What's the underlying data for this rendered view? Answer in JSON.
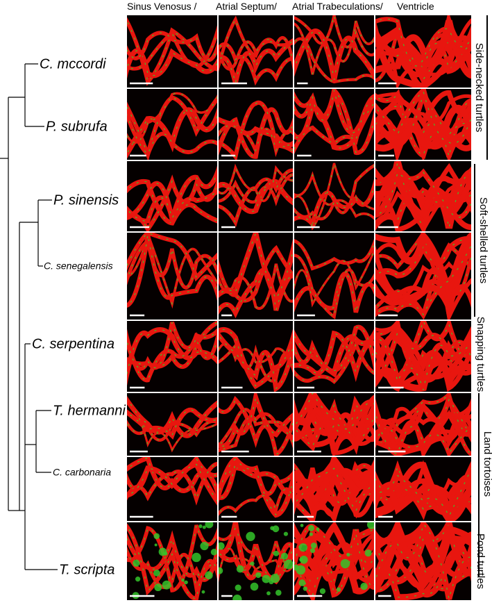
{
  "columns": [
    "Sinus Venosus /",
    "Atrial Septum/",
    "Atrial Trabeculations/",
    "Ventricle"
  ],
  "species": [
    "C. mccordi",
    "P. subrufa",
    "P. sinensis",
    "C. senegalensis",
    "C. serpentina",
    "T. hermanni",
    "C. carbonaria",
    "T. scripta"
  ],
  "groups": [
    "Side-necked turtles",
    "Soft-shelled turtles",
    "Snapping turtles",
    "Land tortoises",
    "Pond turtles"
  ]
}
